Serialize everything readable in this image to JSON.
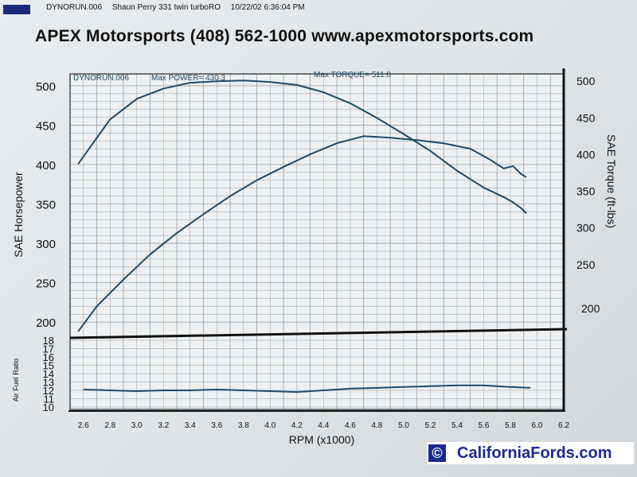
{
  "header": {
    "run_file": "DYNORUN.006",
    "description": "Shaun Perry 331 twin turboRO",
    "timestamp": "10/22/02 6:36:04 PM"
  },
  "title": "APEX Motorsports (408) 562-1000 www.apexmotorsports.com",
  "watermark": {
    "symbol": "©",
    "text": "CaliforniaFords.com"
  },
  "colors": {
    "curve": "#1f4a68",
    "paper": "#e6e9eb",
    "grid": "#9aa0a6",
    "watermark_text": "#1a2a90"
  },
  "chart_data": [
    {
      "type": "line",
      "annotation_run": "DYNORUN.006",
      "annotation_power": "Max POWER= 430.3",
      "annotation_torque": "Max TORQUE= 511.0",
      "ylabel_left": "SAE Horsepower",
      "ylabel_right": "SAE Torque (ft-lbs)",
      "yticks_left": [
        "200",
        "250",
        "300",
        "350",
        "400",
        "450",
        "500"
      ],
      "ylim_left": [
        180,
        515
      ],
      "yticks_right": [
        "250",
        "300",
        "350",
        "400",
        "450",
        "500"
      ],
      "yticks_right_extra": "200",
      "ylim_right": [
        150,
        510
      ],
      "grid": true,
      "series": [
        {
          "role": "torque",
          "axis": "right",
          "x": [
            2.56,
            2.65,
            2.8,
            3.0,
            3.2,
            3.4,
            3.6,
            3.8,
            4.0,
            4.2,
            4.4,
            4.6,
            4.8,
            5.0,
            5.2,
            5.4,
            5.6,
            5.75,
            5.82,
            5.88,
            5.92
          ],
          "y": [
            387,
            410,
            448,
            476,
            490,
            498,
            500,
            501,
            499,
            495,
            485,
            470,
            450,
            428,
            405,
            378,
            355,
            342,
            335,
            327,
            320
          ]
        },
        {
          "role": "horsepower",
          "axis": "left",
          "x": [
            2.56,
            2.7,
            2.9,
            3.1,
            3.3,
            3.5,
            3.7,
            3.9,
            4.1,
            4.3,
            4.5,
            4.7,
            4.9,
            5.1,
            5.3,
            5.5,
            5.65,
            5.75,
            5.82,
            5.88,
            5.92
          ],
          "y": [
            188,
            220,
            254,
            286,
            313,
            337,
            360,
            380,
            397,
            413,
            427,
            436,
            434,
            431,
            427,
            420,
            406,
            395,
            398,
            388,
            384
          ]
        }
      ]
    },
    {
      "type": "line",
      "ylabel": "Air Fuel Ratio",
      "xlabel": "RPM (x1000)",
      "xticks": [
        "2.6",
        "2.8",
        "3.0",
        "3.2",
        "3.4",
        "3.6",
        "3.8",
        "4.0",
        "4.2",
        "4.4",
        "4.6",
        "4.8",
        "5.0",
        "5.2",
        "5.4",
        "5.6",
        "5.8",
        "6.0",
        "6.2"
      ],
      "xlim": [
        2.5,
        6.2
      ],
      "yticks": [
        "10",
        "11",
        "12",
        "13",
        "14",
        "15",
        "16",
        "17",
        "18"
      ],
      "ylim": [
        10,
        18
      ],
      "grid": true,
      "series": [
        {
          "role": "air-fuel-ratio",
          "x": [
            2.6,
            2.8,
            3.0,
            3.2,
            3.4,
            3.6,
            3.8,
            4.0,
            4.2,
            4.4,
            4.6,
            4.8,
            5.0,
            5.2,
            5.4,
            5.6,
            5.8,
            5.95
          ],
          "y": [
            12.1,
            12.0,
            11.9,
            12.0,
            12.0,
            12.1,
            12.0,
            11.9,
            11.8,
            12.0,
            12.2,
            12.3,
            12.4,
            12.5,
            12.6,
            12.6,
            12.4,
            12.3
          ]
        }
      ]
    }
  ]
}
